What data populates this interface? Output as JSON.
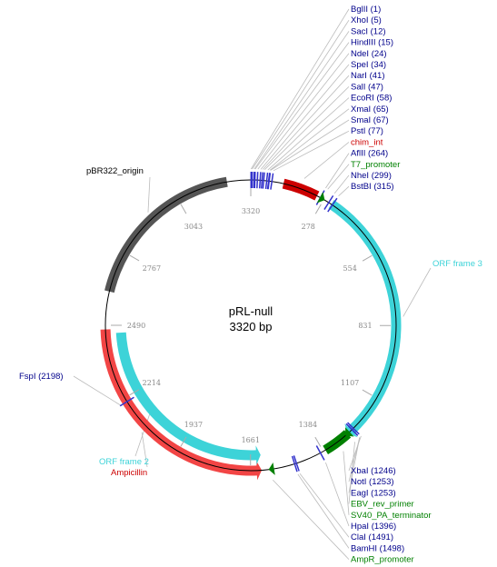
{
  "plasmid": {
    "name": "pRL-null",
    "size_label": "3320 bp",
    "length": 3320
  },
  "colors": {
    "enzyme": "#00008b",
    "enzyme_mark": "#3333cc",
    "promoter": "#008000",
    "intron": "#cc0000",
    "orf": "#3dd3d8",
    "ampicillin": "#f24545",
    "origin": "#555555",
    "leader": "#bbbbbb",
    "tick": "#aaaaaa",
    "backbone": "#000000"
  },
  "ticks": [
    {
      "bp": 278,
      "label": "278"
    },
    {
      "bp": 554,
      "label": "554"
    },
    {
      "bp": 831,
      "label": "831"
    },
    {
      "bp": 1107,
      "label": "1107"
    },
    {
      "bp": 1384,
      "label": "1384"
    },
    {
      "bp": 1661,
      "label": "1661"
    },
    {
      "bp": 1937,
      "label": "1937"
    },
    {
      "bp": 2214,
      "label": "2214"
    },
    {
      "bp": 2490,
      "label": "2490"
    },
    {
      "bp": 2767,
      "label": "2767"
    },
    {
      "bp": 3043,
      "label": "3043"
    },
    {
      "bp": 3320,
      "label": "3320"
    }
  ],
  "features": [
    {
      "name": "pBR322_origin",
      "type": "origin",
      "start": 2614,
      "end": 3233,
      "ring": 0,
      "arrow": "none",
      "label": "pBR322_origin"
    },
    {
      "name": "chim_int",
      "type": "intron",
      "start": 120,
      "end": 250,
      "ring": 0,
      "arrow": "none",
      "label": "chim_int"
    },
    {
      "name": "ORF frame 3",
      "type": "orf",
      "start": 310,
      "end": 1275,
      "ring": 0,
      "arrow": "forward",
      "label": "ORF frame 3"
    },
    {
      "name": "Ampicillin",
      "type": "ampicillin",
      "start": 1620,
      "end": 2475,
      "ring": 0,
      "arrow": "reverse",
      "label": "Ampicillin"
    },
    {
      "name": "ORF frame 2",
      "type": "orf",
      "start": 1620,
      "end": 2460,
      "ring": 1,
      "arrow": "reverse",
      "label": "ORF frame 2"
    },
    {
      "name": "SV40_PA_terminator",
      "type": "promoter",
      "start": 1275,
      "end": 1375,
      "ring": 0,
      "arrow": "none",
      "label": "SV40_PA_terminator"
    }
  ],
  "small_markers": [
    {
      "name": "T7_promoter",
      "bp": 272,
      "kind": "promoter-arrow"
    },
    {
      "name": "EBV_rev_primer",
      "bp": 1275,
      "kind": "promoter-arrow"
    },
    {
      "name": "AmpR_promoter",
      "bp": 1585,
      "kind": "promoter-arrow"
    }
  ],
  "labels_top": [
    {
      "text": "BglII (1)",
      "bp": 1,
      "kind": "enzyme"
    },
    {
      "text": "XhoI (5)",
      "bp": 5,
      "kind": "enzyme"
    },
    {
      "text": "SacI (12)",
      "bp": 12,
      "kind": "enzyme"
    },
    {
      "text": "HindIII (15)",
      "bp": 15,
      "kind": "enzyme"
    },
    {
      "text": "NdeI (24)",
      "bp": 24,
      "kind": "enzyme"
    },
    {
      "text": "SpeI (34)",
      "bp": 34,
      "kind": "enzyme"
    },
    {
      "text": "NarI (41)",
      "bp": 41,
      "kind": "enzyme"
    },
    {
      "text": "SalI (47)",
      "bp": 47,
      "kind": "enzyme"
    },
    {
      "text": "EcoRI (58)",
      "bp": 58,
      "kind": "enzyme"
    },
    {
      "text": "XmaI (65)",
      "bp": 65,
      "kind": "enzyme"
    },
    {
      "text": "SmaI (67)",
      "bp": 67,
      "kind": "enzyme"
    },
    {
      "text": "PstI (77)",
      "bp": 77,
      "kind": "enzyme"
    },
    {
      "text": "chim_int",
      "bp": 185,
      "kind": "intron"
    },
    {
      "text": "AflII (264)",
      "bp": 264,
      "kind": "enzyme"
    },
    {
      "text": "T7_promoter",
      "bp": 272,
      "kind": "promoter"
    },
    {
      "text": "NheI (299)",
      "bp": 299,
      "kind": "enzyme"
    },
    {
      "text": "BstBI (315)",
      "bp": 315,
      "kind": "enzyme"
    }
  ],
  "labels_bottom": [
    {
      "text": "XbaI (1246)",
      "bp": 1246,
      "kind": "enzyme"
    },
    {
      "text": "NotI (1253)",
      "bp": 1253,
      "kind": "enzyme"
    },
    {
      "text": "EagI (1253)",
      "bp": 1253,
      "kind": "enzyme"
    },
    {
      "text": "EBV_rev_primer",
      "bp": 1275,
      "kind": "promoter"
    },
    {
      "text": "SV40_PA_terminator",
      "bp": 1325,
      "kind": "promoter"
    },
    {
      "text": "HpaI (1396)",
      "bp": 1396,
      "kind": "enzyme"
    },
    {
      "text": "ClaI (1491)",
      "bp": 1491,
      "kind": "enzyme"
    },
    {
      "text": "BamHI (1498)",
      "bp": 1498,
      "kind": "enzyme"
    },
    {
      "text": "AmpR_promoter",
      "bp": 1585,
      "kind": "promoter"
    }
  ],
  "labels_side": [
    {
      "text": "ORF frame 3",
      "bp": 800,
      "kind": "orf",
      "side": "right"
    },
    {
      "text": "FspI (2198)",
      "bp": 2198,
      "kind": "enzyme",
      "side": "left"
    },
    {
      "text": "ORF frame 2",
      "bp": 2120,
      "kind": "orf",
      "side": "left"
    },
    {
      "text": "Ampicillin",
      "bp": 2080,
      "kind": "intron",
      "side": "left"
    },
    {
      "text": "pBR322_origin",
      "bp": 2930,
      "kind": "origin",
      "side": "left"
    }
  ]
}
